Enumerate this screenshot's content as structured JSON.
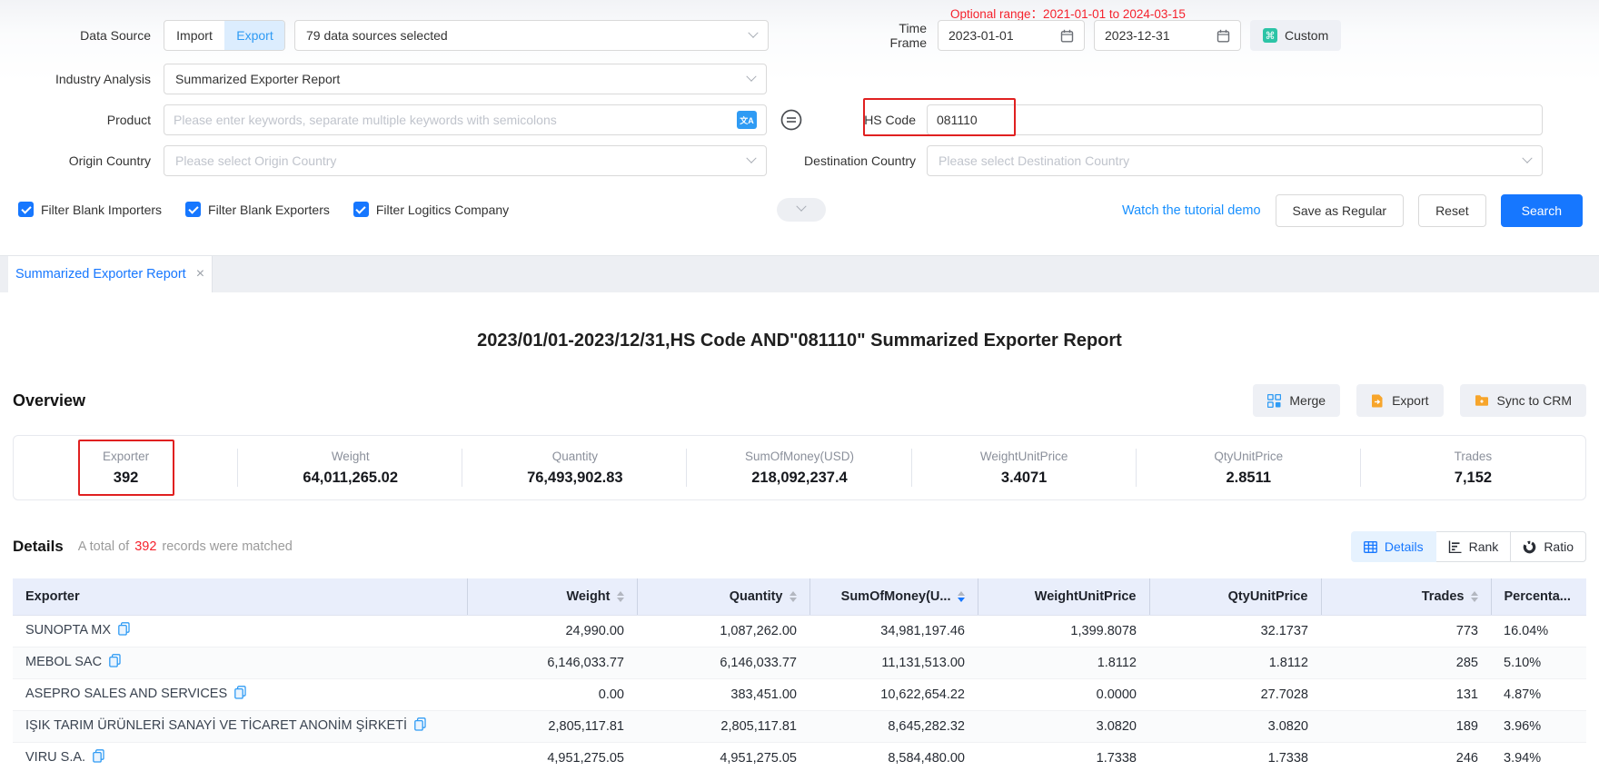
{
  "filters": {
    "data_source": {
      "label": "Data Source",
      "import_label": "Import",
      "export_label": "Export",
      "selected": "Export",
      "sources_selected": "79 data sources selected"
    },
    "time_frame": {
      "label": "Time Frame",
      "optional_range": "Optional range：2021-01-01 to 2024-03-15",
      "start_date": "2023-01-01",
      "end_date": "2023-12-31",
      "custom_label": "Custom"
    },
    "industry_analysis": {
      "label": "Industry Analysis",
      "value": "Summarized Exporter Report"
    },
    "product": {
      "label": "Product",
      "placeholder": "Please enter keywords, separate multiple keywords with semicolons"
    },
    "hs_code": {
      "label": "HS Code",
      "value": "081110"
    },
    "origin_country": {
      "label": "Origin Country",
      "placeholder": "Please select Origin Country"
    },
    "destination_country": {
      "label": "Destination Country",
      "placeholder": "Please select Destination Country"
    },
    "checkboxes": [
      {
        "label": "Filter Blank Importers",
        "checked": true
      },
      {
        "label": "Filter Blank Exporters",
        "checked": true
      },
      {
        "label": "Filter Logitics Company",
        "checked": true
      }
    ],
    "actions": {
      "tutorial_link": "Watch the tutorial demo",
      "save_as_regular": "Save as Regular",
      "reset": "Reset",
      "search": "Search"
    }
  },
  "tab": {
    "title": "Summarized Exporter Report"
  },
  "report": {
    "title": "2023/01/01-2023/12/31,HS Code AND\"081110\" Summarized Exporter Report"
  },
  "overview": {
    "heading": "Overview",
    "buttons": {
      "merge": "Merge",
      "export": "Export",
      "sync_to_crm": "Sync to CRM"
    },
    "stats": [
      {
        "label": "Exporter",
        "value": "392",
        "highlighted": true
      },
      {
        "label": "Weight",
        "value": "64,011,265.02"
      },
      {
        "label": "Quantity",
        "value": "76,493,902.83"
      },
      {
        "label": "SumOfMoney(USD)",
        "value": "218,092,237.4"
      },
      {
        "label": "WeightUnitPrice",
        "value": "3.4071"
      },
      {
        "label": "QtyUnitPrice",
        "value": "2.8511"
      },
      {
        "label": "Trades",
        "value": "7,152"
      }
    ]
  },
  "details": {
    "heading": "Details",
    "summary_prefix": "A total of",
    "record_count": "392",
    "summary_suffix": "records were matched",
    "view_buttons": {
      "details": "Details",
      "rank": "Rank",
      "ratio": "Ratio"
    },
    "active_view": "Details"
  },
  "table": {
    "columns": [
      {
        "label": "Exporter",
        "align": "left",
        "sortable": false
      },
      {
        "label": "Weight",
        "align": "right",
        "sortable": true
      },
      {
        "label": "Quantity",
        "align": "right",
        "sortable": true
      },
      {
        "label": "SumOfMoney(U...",
        "align": "right",
        "sortable": true,
        "sort": "desc"
      },
      {
        "label": "WeightUnitPrice",
        "align": "right",
        "sortable": false
      },
      {
        "label": "QtyUnitPrice",
        "align": "right",
        "sortable": false
      },
      {
        "label": "Trades",
        "align": "right",
        "sortable": true
      },
      {
        "label": "Percenta...",
        "align": "left",
        "sortable": false
      }
    ],
    "rows": [
      {
        "exporter": "SUNOPTA MX",
        "weight": "24,990.00",
        "quantity": "1,087,262.00",
        "sum_of_money": "34,981,197.46",
        "weight_unit_price": "1,399.8078",
        "qty_unit_price": "32.1737",
        "trades": "773",
        "percentage": "16.04%"
      },
      {
        "exporter": "MEBOL SAC",
        "weight": "6,146,033.77",
        "quantity": "6,146,033.77",
        "sum_of_money": "11,131,513.00",
        "weight_unit_price": "1.8112",
        "qty_unit_price": "1.8112",
        "trades": "285",
        "percentage": "5.10%"
      },
      {
        "exporter": "ASEPRO SALES AND SERVICES",
        "weight": "0.00",
        "quantity": "383,451.00",
        "sum_of_money": "10,622,654.22",
        "weight_unit_price": "0.0000",
        "qty_unit_price": "27.7028",
        "trades": "131",
        "percentage": "4.87%"
      },
      {
        "exporter": "IŞIK TARIM ÜRÜNLERİ SANAYİ VE TİCARET ANONİM ŞİRKETİ",
        "weight": "2,805,117.81",
        "quantity": "2,805,117.81",
        "sum_of_money": "8,645,282.32",
        "weight_unit_price": "3.0820",
        "qty_unit_price": "3.0820",
        "trades": "189",
        "percentage": "3.96%"
      },
      {
        "exporter": "VIRU S.A.",
        "weight": "4,951,275.05",
        "quantity": "4,951,275.05",
        "sum_of_money": "8,584,480.00",
        "weight_unit_price": "1.7338",
        "qty_unit_price": "1.7338",
        "trades": "246",
        "percentage": "3.94%"
      }
    ]
  },
  "icons": {
    "translate_glyph": "文A",
    "custom_glyph": "⌘",
    "close_glyph": "×"
  },
  "colors": {
    "accent": "#1677ff",
    "annotation_red": "#e02020",
    "warning_red": "#f5222d",
    "link_blue": "#1890ff",
    "header_bg": "#e9eefb"
  }
}
